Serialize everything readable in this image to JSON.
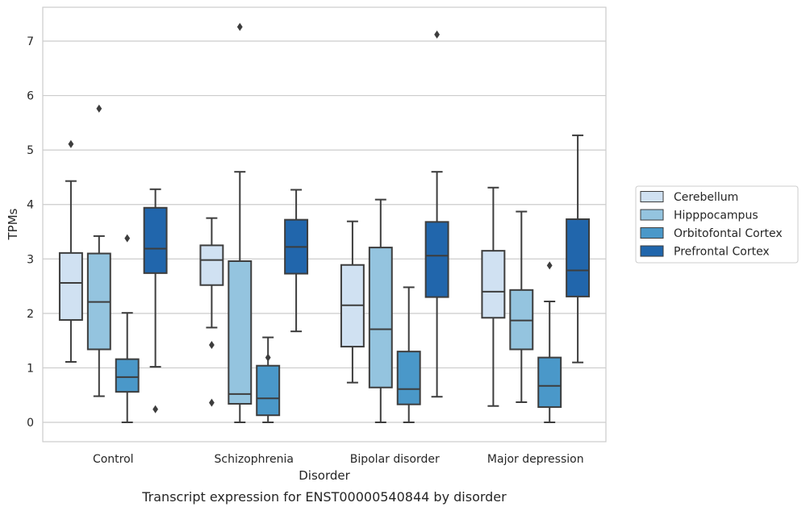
{
  "chart_data": {
    "type": "box",
    "xlabel": "Disorder",
    "ylabel": "TPMs",
    "caption": "Transcript expression for ENST00000540844 by disorder",
    "categories": [
      "Control",
      "Schizophrenia",
      "Bipolar disorder",
      "Major depression"
    ],
    "y_ticks": [
      "0",
      "1",
      "2",
      "3",
      "4",
      "5",
      "6",
      "7"
    ],
    "ylim": [
      -0.35,
      7.6
    ],
    "grid": "horizontal",
    "legend_position": "right",
    "series": [
      {
        "name": "Cerebellum",
        "color": "#d0e1f2",
        "boxes": [
          {
            "whisker_low": 1.11,
            "q1": 1.88,
            "median": 2.56,
            "q3": 3.11,
            "whisker_high": 4.43,
            "outliers": [
              5.11
            ]
          },
          {
            "whisker_low": 1.74,
            "q1": 2.52,
            "median": 2.98,
            "q3": 3.25,
            "whisker_high": 3.75,
            "outliers": [
              1.42,
              0.36
            ]
          },
          {
            "whisker_low": 0.73,
            "q1": 1.39,
            "median": 2.15,
            "q3": 2.89,
            "whisker_high": 3.69,
            "outliers": []
          },
          {
            "whisker_low": 0.3,
            "q1": 1.92,
            "median": 2.4,
            "q3": 3.15,
            "whisker_high": 4.31,
            "outliers": []
          }
        ]
      },
      {
        "name": "Hipppocampus",
        "color": "#94c4df",
        "boxes": [
          {
            "whisker_low": 0.48,
            "q1": 1.34,
            "median": 2.21,
            "q3": 3.1,
            "whisker_high": 3.42,
            "outliers": [
              5.76
            ]
          },
          {
            "whisker_low": 0.0,
            "q1": 0.34,
            "median": 0.52,
            "q3": 2.96,
            "whisker_high": 4.6,
            "outliers": [
              7.26
            ]
          },
          {
            "whisker_low": 0.0,
            "q1": 0.64,
            "median": 1.71,
            "q3": 3.21,
            "whisker_high": 4.09,
            "outliers": []
          },
          {
            "whisker_low": 0.37,
            "q1": 1.34,
            "median": 1.87,
            "q3": 2.43,
            "whisker_high": 3.87,
            "outliers": []
          }
        ]
      },
      {
        "name": "Orbitofontal Cortex",
        "color": "#4a98c9",
        "boxes": [
          {
            "whisker_low": 0.0,
            "q1": 0.56,
            "median": 0.83,
            "q3": 1.16,
            "whisker_high": 2.01,
            "outliers": [
              3.38
            ]
          },
          {
            "whisker_low": 0.0,
            "q1": 0.13,
            "median": 0.44,
            "q3": 1.04,
            "whisker_high": 1.56,
            "outliers": [
              1.19
            ]
          },
          {
            "whisker_low": 0.0,
            "q1": 0.33,
            "median": 0.61,
            "q3": 1.3,
            "whisker_high": 2.48,
            "outliers": []
          },
          {
            "whisker_low": 0.0,
            "q1": 0.28,
            "median": 0.67,
            "q3": 1.19,
            "whisker_high": 2.22,
            "outliers": [
              2.88
            ]
          }
        ]
      },
      {
        "name": "Prefrontal Cortex",
        "color": "#2166ac",
        "boxes": [
          {
            "whisker_low": 1.02,
            "q1": 2.74,
            "median": 3.19,
            "q3": 3.94,
            "whisker_high": 4.28,
            "outliers": [
              0.24
            ]
          },
          {
            "whisker_low": 1.67,
            "q1": 2.73,
            "median": 3.22,
            "q3": 3.72,
            "whisker_high": 4.27,
            "outliers": []
          },
          {
            "whisker_low": 0.47,
            "q1": 2.3,
            "median": 3.06,
            "q3": 3.68,
            "whisker_high": 4.6,
            "outliers": [
              7.12
            ]
          },
          {
            "whisker_low": 1.1,
            "q1": 2.31,
            "median": 2.79,
            "q3": 3.73,
            "whisker_high": 5.27,
            "outliers": []
          }
        ]
      }
    ]
  }
}
